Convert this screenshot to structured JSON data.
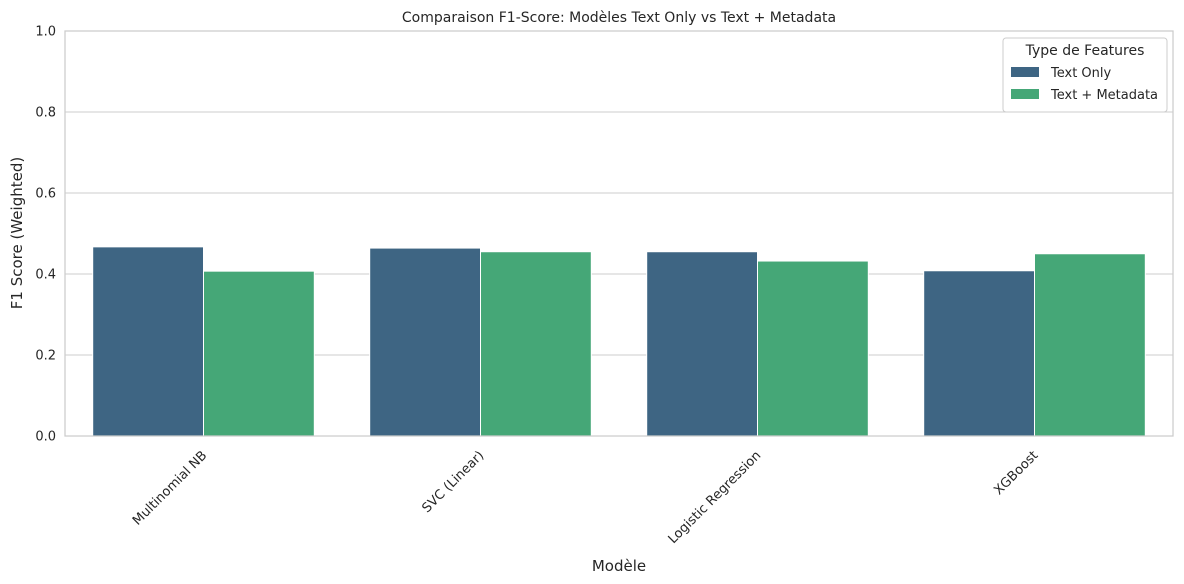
{
  "chart_data": {
    "type": "bar",
    "title": "Comparaison F1-Score: Modèles Text Only vs Text + Metadata",
    "xlabel": "Modèle",
    "ylabel": "F1 Score (Weighted)",
    "ylim": [
      0,
      1
    ],
    "yticks": [
      "0.0",
      "0.2",
      "0.4",
      "0.6",
      "0.8",
      "1.0"
    ],
    "grid": "horizontal",
    "categories": [
      "Multinomial NB",
      "SVC (Linear)",
      "Logistic Regression",
      "XGBoost"
    ],
    "series": [
      {
        "name": "Text Only",
        "color": "#3e6583",
        "values": [
          0.467,
          0.464,
          0.455,
          0.408
        ]
      },
      {
        "name": "Text + Metadata",
        "color": "#45a777",
        "values": [
          0.407,
          0.455,
          0.432,
          0.45
        ]
      }
    ],
    "legend": {
      "title": "Type de Features",
      "position": "top-right"
    }
  }
}
